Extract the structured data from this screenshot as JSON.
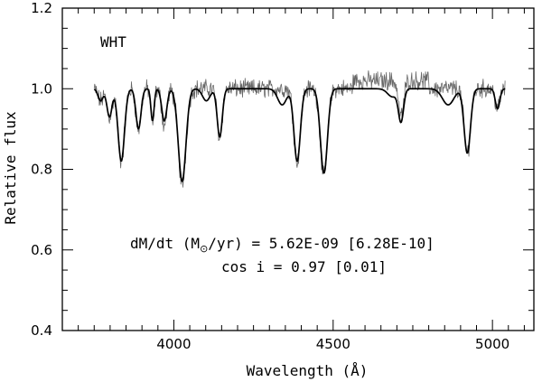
{
  "chart_data": {
    "type": "line",
    "xlabel": "Wavelength (Å)",
    "ylabel": "Relative flux",
    "xlim": [
      3650,
      5130
    ],
    "ylim": [
      0.4,
      1.2
    ],
    "x_ticks": [
      4000,
      4500,
      5000
    ],
    "y_ticks": [
      0.4,
      0.6,
      0.8,
      1.0,
      1.2
    ],
    "x_tick_labels": [
      "4000",
      "4500",
      "5000"
    ],
    "y_tick_labels": [
      "0.4",
      "0.6",
      "0.8",
      "1.0",
      "1.2"
    ],
    "x_minor_step": 50,
    "y_minor_step": 0.05,
    "grid": false,
    "series": [
      {
        "color": "#000000",
        "continuum": 1.0,
        "x_range": [
          3750,
          5040
        ],
        "lines": [
          {
            "center": 3770,
            "depth": 0.03,
            "width": 8
          },
          {
            "center": 3798,
            "depth": 0.07,
            "width": 8
          },
          {
            "center": 3835,
            "depth": 0.18,
            "width": 10
          },
          {
            "center": 3889,
            "depth": 0.1,
            "width": 8
          },
          {
            "center": 3933,
            "depth": 0.08,
            "width": 5
          },
          {
            "center": 3970,
            "depth": 0.08,
            "width": 8
          },
          {
            "center": 4026,
            "depth": 0.23,
            "width": 12
          },
          {
            "center": 4102,
            "depth": 0.03,
            "width": 12
          },
          {
            "center": 4144,
            "depth": 0.12,
            "width": 8
          },
          {
            "center": 4340,
            "depth": 0.04,
            "width": 14
          },
          {
            "center": 4387,
            "depth": 0.18,
            "width": 10
          },
          {
            "center": 4471,
            "depth": 0.21,
            "width": 11
          },
          {
            "center": 4686,
            "depth": 0.02,
            "width": 15
          },
          {
            "center": 4713,
            "depth": 0.08,
            "width": 8
          },
          {
            "center": 4861,
            "depth": 0.04,
            "width": 18
          },
          {
            "center": 4921,
            "depth": 0.16,
            "width": 10
          },
          {
            "center": 5016,
            "depth": 0.05,
            "width": 7
          }
        ]
      },
      {
        "color": "#666666",
        "continuum": 1.0,
        "x_range": [
          3750,
          5040
        ],
        "noise_amplitude": 0.018,
        "lines": [
          {
            "center": 3770,
            "depth": 0.03,
            "width": 8
          },
          {
            "center": 3798,
            "depth": 0.07,
            "width": 8
          },
          {
            "center": 3835,
            "depth": 0.18,
            "width": 10
          },
          {
            "center": 3889,
            "depth": 0.1,
            "width": 8
          },
          {
            "center": 3933,
            "depth": 0.09,
            "width": 5
          },
          {
            "center": 3970,
            "depth": 0.09,
            "width": 8
          },
          {
            "center": 4026,
            "depth": 0.24,
            "width": 12
          },
          {
            "center": 4102,
            "depth": 0.0,
            "width": 12
          },
          {
            "center": 4144,
            "depth": 0.12,
            "width": 8
          },
          {
            "center": 4340,
            "depth": 0.0,
            "width": 14
          },
          {
            "center": 4387,
            "depth": 0.18,
            "width": 10
          },
          {
            "center": 4471,
            "depth": 0.22,
            "width": 11
          },
          {
            "center": 4713,
            "depth": 0.09,
            "width": 8
          },
          {
            "center": 4861,
            "depth": 0.0,
            "width": 18
          },
          {
            "center": 4921,
            "depth": 0.16,
            "width": 10
          },
          {
            "center": 5016,
            "depth": 0.05,
            "width": 7
          }
        ]
      }
    ],
    "annotations": {
      "label": "WHT",
      "mdot_prefix": "dM/dt (M",
      "sun_symbol": "⊙",
      "mdot_suffix": "/yr) = 5.62E-09 [6.28E-10]",
      "incl": "cos i = 0.97 [0.01]"
    }
  }
}
